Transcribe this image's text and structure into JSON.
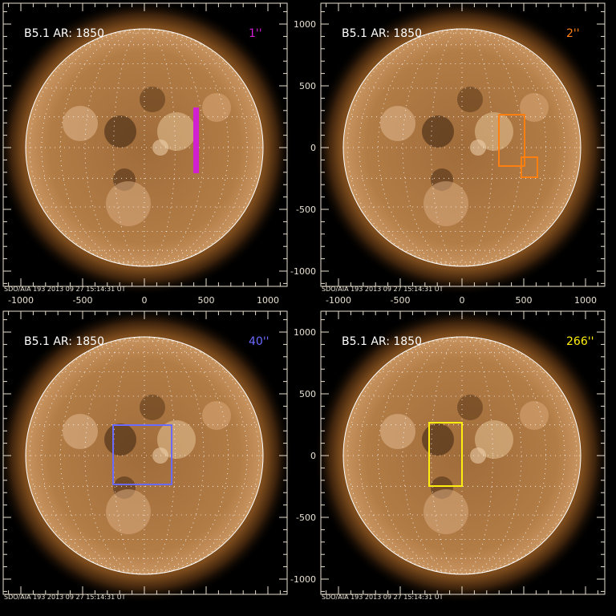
{
  "figure": {
    "background": "#000000",
    "axis_color": "#e8e0d0",
    "x_tick_labels": [
      "-1000",
      "-500",
      "0",
      "500",
      "1000"
    ],
    "y_tick_labels": [
      "1000",
      "500",
      "0",
      "-500",
      "-1000"
    ],
    "footer": "SDO/AIA 193   2013 09 27 15:14:31 UT"
  },
  "panels": [
    {
      "label": "B5.1  AR: 1850",
      "tag": "1''",
      "color": "#d020d0"
    },
    {
      "label": "B5.1  AR: 1850",
      "tag": "2''",
      "color": "#ff8010"
    },
    {
      "label": "B5.1  AR: 1850",
      "tag": "40''",
      "color": "#6a6aff"
    },
    {
      "label": "B5.1  AR: 1850",
      "tag": "266''",
      "color": "#ffee10"
    }
  ]
}
